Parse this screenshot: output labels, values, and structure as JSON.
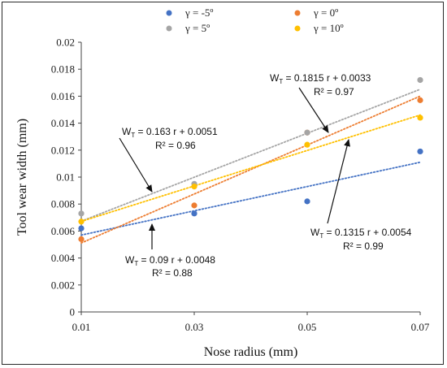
{
  "chart_data": {
    "type": "scatter",
    "xlabel": "Nose radius (mm)",
    "ylabel": "Tool wear width (mm)",
    "x_ticks": [
      "0.01",
      "0.03",
      "0.05",
      "0.07"
    ],
    "y_ticks": [
      "0",
      "0.002",
      "0.004",
      "0.006",
      "0.008",
      "0.01",
      "0.012",
      "0.014",
      "0.016",
      "0.018",
      "0.02"
    ],
    "xlim": [
      0.01,
      0.07
    ],
    "ylim": [
      0,
      0.02
    ],
    "grid": false,
    "legend_position": "top",
    "series": [
      {
        "name": "γ = -5º",
        "color": "#4472c4",
        "x": [
          0.01,
          0.03,
          0.05,
          0.07
        ],
        "y": [
          0.0062,
          0.0073,
          0.0082,
          0.0119
        ],
        "trendline": {
          "slope": 0.09,
          "intercept": 0.0048
        }
      },
      {
        "name": "γ = 0º",
        "color": "#ed7d31",
        "x": [
          0.01,
          0.03,
          0.05,
          0.07
        ],
        "y": [
          0.0054,
          0.0079,
          0.0133,
          0.0157
        ],
        "trendline": {
          "slope": 0.1815,
          "intercept": 0.0033
        }
      },
      {
        "name": "γ = 5º",
        "color": "#a5a5a5",
        "x": [
          0.01,
          0.03,
          0.05,
          0.07
        ],
        "y": [
          0.0073,
          0.0095,
          0.0133,
          0.0172
        ],
        "trendline": {
          "slope": 0.163,
          "intercept": 0.0051
        }
      },
      {
        "name": "γ = 10º",
        "color": "#ffc000",
        "x": [
          0.01,
          0.03,
          0.05,
          0.07
        ],
        "y": [
          0.0067,
          0.0093,
          0.0124,
          0.0144
        ],
        "trendline": {
          "slope": 0.1315,
          "intercept": 0.0054
        }
      }
    ],
    "annotations": [
      {
        "sub": "T",
        "eq": " = 0.163 r + 0.0051",
        "r2": "R² = 0.96"
      },
      {
        "sub": "T",
        "eq": " = 0.1815 r + 0.0033",
        "r2": "R² = 0.97"
      },
      {
        "sub": "T",
        "eq": " = 0.09 r + 0.0048",
        "r2": "R² = 0.88"
      },
      {
        "sub": "T",
        "eq": " = 0.1315 r + 0.0054",
        "r2": "R² = 0.99"
      }
    ]
  }
}
